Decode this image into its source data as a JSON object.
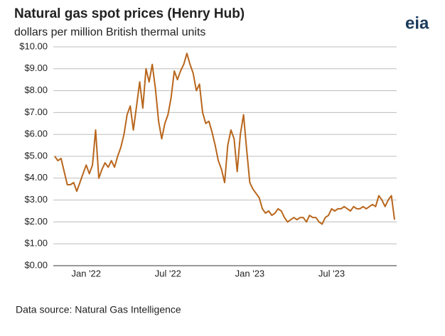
{
  "chart_data": {
    "type": "line",
    "title": "Natural gas spot prices (Henry Hub)",
    "subtitle": "dollars per million British thermal units",
    "source": "Data source: Natural Gas Intelligence",
    "logo": "eia",
    "categories": [
      null,
      null,
      null,
      null,
      null,
      null,
      null,
      null,
      null,
      null,
      "Jan '22",
      null,
      null,
      null,
      null,
      null,
      null,
      null,
      null,
      null,
      null,
      null,
      null,
      null,
      null,
      null,
      null,
      null,
      null,
      null,
      null,
      null,
      null,
      null,
      null,
      null,
      "Jul '22",
      null,
      null,
      null,
      null,
      null,
      null,
      null,
      null,
      null,
      null,
      null,
      null,
      null,
      null,
      null,
      null,
      null,
      null,
      null,
      null,
      null,
      null,
      null,
      null,
      null,
      "Jan '23",
      null,
      null,
      null,
      null,
      null,
      null,
      null,
      null,
      null,
      null,
      null,
      null,
      null,
      null,
      null,
      null,
      null,
      null,
      null,
      null,
      null,
      null,
      null,
      null,
      null,
      "Jul '23",
      null,
      null,
      null,
      null,
      null,
      null,
      null,
      null,
      null,
      null,
      null,
      null,
      null,
      null,
      null,
      null,
      null,
      null,
      null,
      null
    ],
    "series": [
      {
        "name": "Henry Hub",
        "color": "#b8661c",
        "values": [
          5.0,
          4.8,
          4.9,
          4.3,
          3.7,
          3.7,
          3.8,
          3.4,
          3.8,
          4.2,
          4.6,
          4.2,
          4.6,
          6.2,
          4.0,
          4.4,
          4.7,
          4.5,
          4.8,
          4.5,
          5.0,
          5.4,
          6.0,
          6.9,
          7.3,
          6.2,
          7.3,
          8.4,
          7.2,
          9.0,
          8.4,
          9.2,
          8.1,
          6.6,
          5.8,
          6.5,
          6.9,
          7.7,
          8.9,
          8.5,
          8.9,
          9.2,
          9.7,
          9.2,
          8.8,
          8.0,
          8.3,
          7.0,
          6.5,
          6.6,
          6.1,
          5.5,
          4.8,
          4.4,
          3.8,
          5.5,
          6.2,
          5.8,
          4.3,
          6.0,
          6.9,
          5.3,
          3.8,
          3.5,
          3.3,
          3.1,
          2.6,
          2.4,
          2.5,
          2.3,
          2.4,
          2.6,
          2.5,
          2.2,
          2.0,
          2.1,
          2.2,
          2.1,
          2.2,
          2.2,
          2.0,
          2.3,
          2.2,
          2.2,
          2.0,
          1.9,
          2.2,
          2.3,
          2.6,
          2.5,
          2.6,
          2.6,
          2.7,
          2.6,
          2.5,
          2.7,
          2.6,
          2.6,
          2.7,
          2.6,
          2.7,
          2.8,
          2.7,
          3.2,
          3.0,
          2.7,
          3.0,
          3.2,
          2.1
        ]
      }
    ],
    "ylim": [
      0,
      10
    ],
    "yticks": [
      {
        "value": 0,
        "label": "$0.00"
      },
      {
        "value": 1,
        "label": "$1.00"
      },
      {
        "value": 2,
        "label": "$2.00"
      },
      {
        "value": 3,
        "label": "$3.00"
      },
      {
        "value": 4,
        "label": "$4.00"
      },
      {
        "value": 5,
        "label": "$5.00"
      },
      {
        "value": 6,
        "label": "$6.00"
      },
      {
        "value": 7,
        "label": "$7.00"
      },
      {
        "value": 8,
        "label": "$8.00"
      },
      {
        "value": 9,
        "label": "$9.00"
      },
      {
        "value": 10,
        "label": "$10.00"
      }
    ],
    "grid": true
  }
}
